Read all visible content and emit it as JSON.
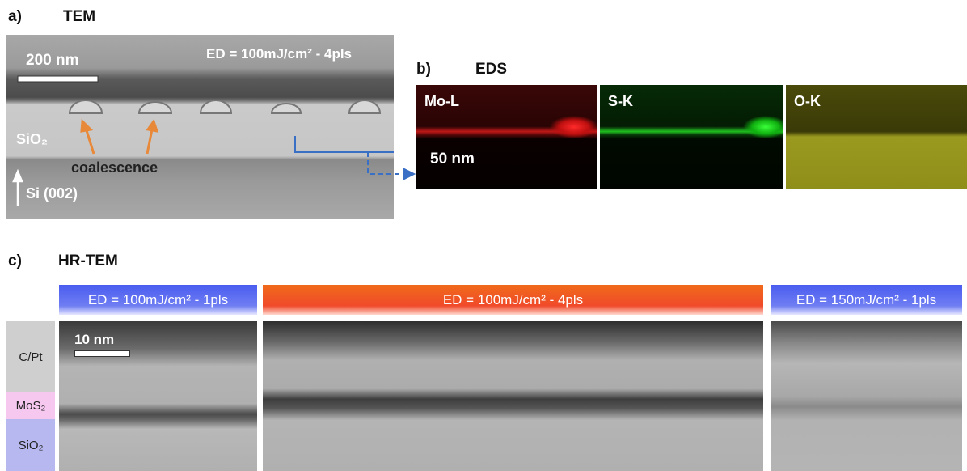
{
  "panel_a": {
    "label": "a)",
    "title": "TEM",
    "scale_bar": "200 nm",
    "condition": "ED = 100mJ/cm² - 4pls",
    "labels": [
      "SiO₂",
      "coalescence",
      "Si (002)"
    ]
  },
  "panel_b": {
    "label": "b)",
    "title": "EDS",
    "maps": [
      "Mo-L",
      "S-K",
      "O-K"
    ],
    "scale_bar": "50 nm"
  },
  "panel_c": {
    "label": "c)",
    "title": "HR-TEM",
    "conditions": [
      "ED = 100mJ/cm² - 1pls",
      "ED = 100mJ/cm² - 4pls",
      "ED = 150mJ/cm² - 1pls"
    ],
    "layers": [
      "C/Pt",
      "MoS₂",
      "SiO₂"
    ],
    "scale_bar": "10 nm"
  }
}
